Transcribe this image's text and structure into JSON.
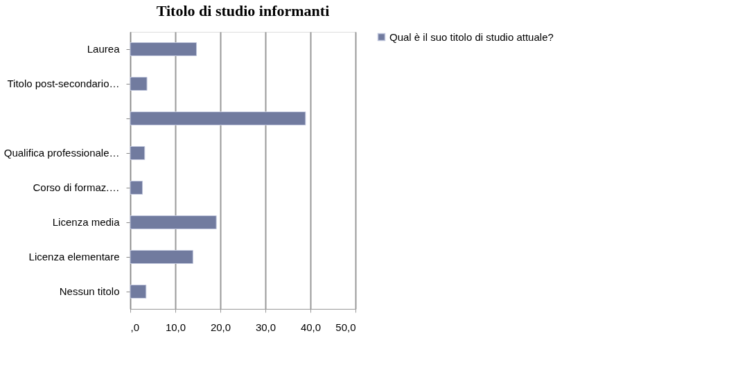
{
  "chart_data": {
    "type": "bar",
    "orientation": "horizontal",
    "title": "Titolo di studio informanti",
    "categories": [
      "Laurea",
      "Titolo post-secondario…",
      null,
      "Qualifica professionale…",
      "Corso di formaz.…",
      "Licenza media",
      "Licenza elementare",
      "Nessun titolo"
    ],
    "series": [
      {
        "name": "Qual è il suo titolo di studio attuale?",
        "color": "#717b9f",
        "values": [
          14.7,
          3.7,
          38.9,
          3.2,
          2.7,
          19.1,
          13.9,
          3.5
        ]
      }
    ],
    "xlim": [
      0,
      50
    ],
    "xticks": [
      {
        "value": 0,
        "label": ",0"
      },
      {
        "value": 10,
        "label": "10,0"
      },
      {
        "value": 20,
        "label": "20,0"
      },
      {
        "value": 30,
        "label": "30,0"
      },
      {
        "value": 40,
        "label": "40,0"
      },
      {
        "value": 50,
        "label": "50,0"
      }
    ],
    "grid": "x",
    "legend": "right"
  }
}
